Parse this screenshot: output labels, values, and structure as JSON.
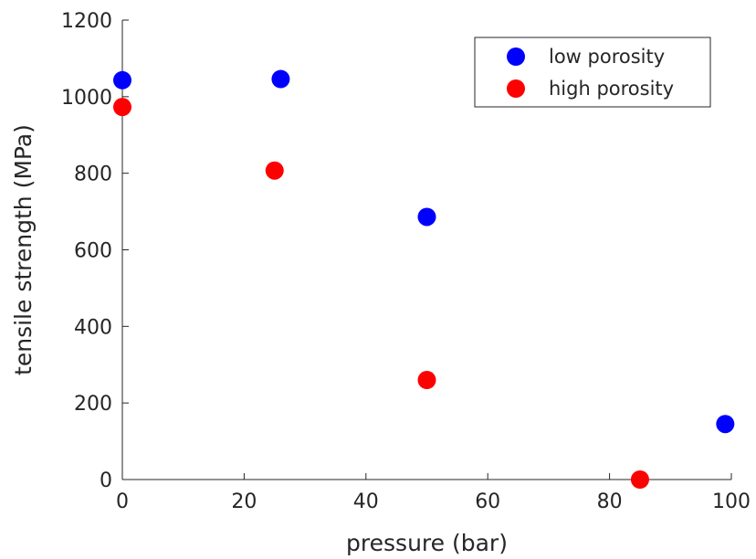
{
  "chart_data": {
    "type": "scatter",
    "xlabel": "pressure (bar)",
    "ylabel": "tensile strength (MPa)",
    "xlim": [
      0,
      100
    ],
    "ylim": [
      0,
      1200
    ],
    "x_ticks": [
      0,
      20,
      40,
      60,
      80,
      100
    ],
    "y_ticks": [
      0,
      200,
      400,
      600,
      800,
      1000,
      1200
    ],
    "grid": false,
    "legend_position": "top-right",
    "series": [
      {
        "name": "low porosity",
        "color": "#0000ff",
        "points": [
          {
            "x": 0,
            "y": 1043
          },
          {
            "x": 26,
            "y": 1046
          },
          {
            "x": 50,
            "y": 686
          },
          {
            "x": 99,
            "y": 145
          }
        ]
      },
      {
        "name": "high porosity",
        "color": "#ff0000",
        "points": [
          {
            "x": 0,
            "y": 973
          },
          {
            "x": 25,
            "y": 807
          },
          {
            "x": 50,
            "y": 260
          },
          {
            "x": 85,
            "y": 0
          }
        ]
      }
    ]
  }
}
